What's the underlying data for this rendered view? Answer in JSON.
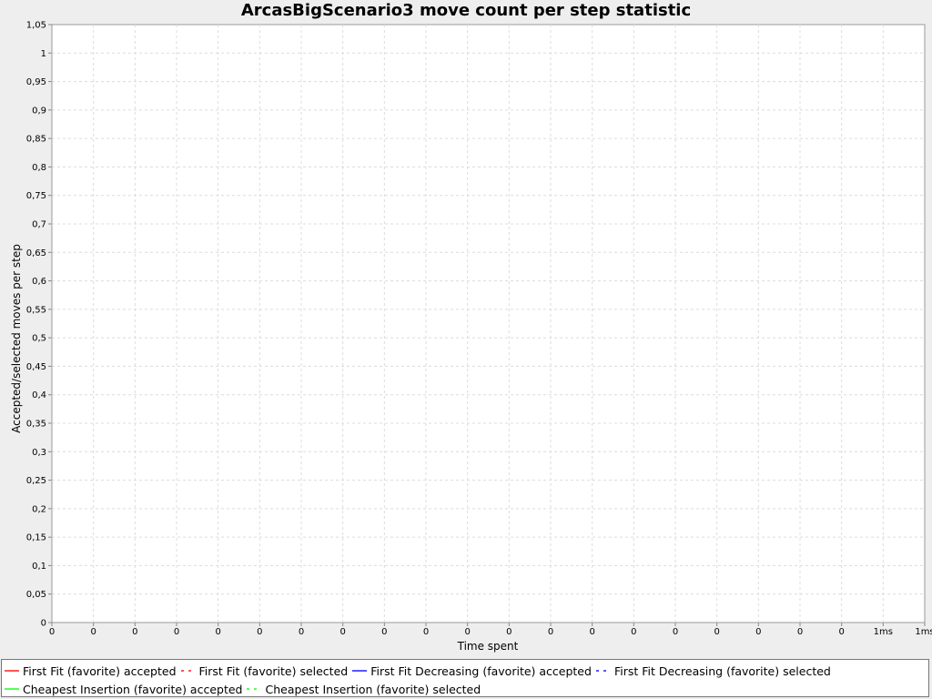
{
  "colors": {
    "first_fit": "#ff5555",
    "first_fit_decreasing": "#5555ff",
    "cheapest_insertion": "#55ff55",
    "grid": "#dcdcdc",
    "plot_bg": "#ffffff",
    "page_bg": "#eeeeee"
  },
  "chart_data": {
    "type": "line",
    "title": "ArcasBigScenario3 move count per step statistic",
    "xlabel": "Time spent",
    "ylabel": "Accepted/selected moves per step",
    "ylim": [
      0,
      1.05
    ],
    "grid": true,
    "legend_position": "bottom",
    "y_ticks": [
      "0",
      "0,05",
      "0,1",
      "0,15",
      "0,2",
      "0,25",
      "0,3",
      "0,35",
      "0,4",
      "0,45",
      "0,5",
      "0,55",
      "0,6",
      "0,65",
      "0,7",
      "0,75",
      "0,8",
      "0,85",
      "0,9",
      "0,95",
      "1",
      "1,05"
    ],
    "x_ticks": [
      "0",
      "0",
      "0",
      "0",
      "0",
      "0",
      "0",
      "0",
      "0",
      "0",
      "0",
      "0",
      "0",
      "0",
      "0",
      "0",
      "0",
      "0",
      "0",
      "0",
      "1ms",
      "1ms"
    ],
    "series": [
      {
        "name": "First Fit (favorite) accepted",
        "color": "#ff5555",
        "dash": false,
        "values": []
      },
      {
        "name": "First Fit (favorite) selected",
        "color": "#ff5555",
        "dash": true,
        "values": []
      },
      {
        "name": "First Fit Decreasing (favorite) accepted",
        "color": "#5555ff",
        "dash": false,
        "values": []
      },
      {
        "name": "First Fit Decreasing (favorite) selected",
        "color": "#5555ff",
        "dash": true,
        "values": []
      },
      {
        "name": "Cheapest Insertion (favorite) accepted",
        "color": "#55ff55",
        "dash": false,
        "values": []
      },
      {
        "name": "Cheapest Insertion (favorite) selected",
        "color": "#55ff55",
        "dash": true,
        "values": []
      }
    ]
  }
}
